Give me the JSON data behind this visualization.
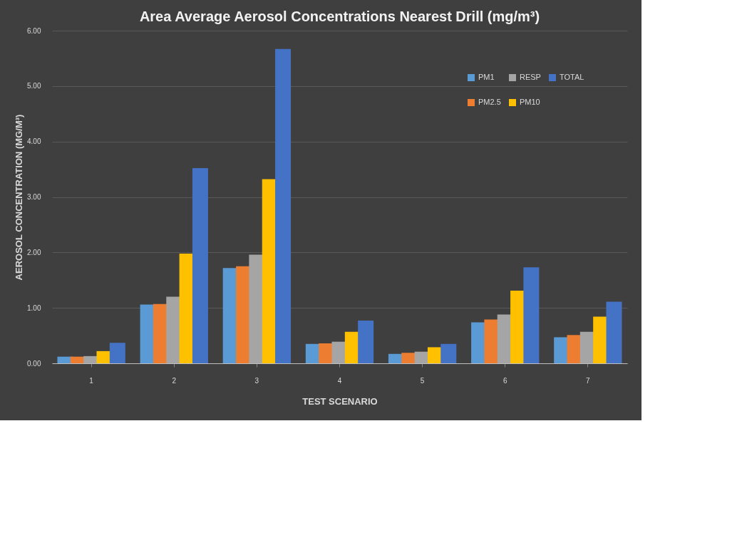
{
  "chart_data": {
    "type": "bar",
    "title": "Area Average Aerosol Concentrations Nearest Drill (mg/m³)",
    "xlabel": "TEST SCENARIO",
    "ylabel": "AEROSOL CONCENTRATION (MG/M³)",
    "categories": [
      "1",
      "2",
      "3",
      "4",
      "5",
      "6",
      "7"
    ],
    "series": [
      {
        "name": "PM1",
        "color": "#5b9bd5",
        "values": [
          0.12,
          1.06,
          1.72,
          0.35,
          0.17,
          0.74,
          0.47
        ]
      },
      {
        "name": "PM2.5",
        "color": "#ed7d31",
        "values": [
          0.12,
          1.07,
          1.75,
          0.36,
          0.19,
          0.79,
          0.51
        ]
      },
      {
        "name": "RESP",
        "color": "#a5a5a5",
        "values": [
          0.13,
          1.2,
          1.96,
          0.39,
          0.21,
          0.88,
          0.57
        ]
      },
      {
        "name": "PM10",
        "color": "#ffc000",
        "values": [
          0.22,
          1.98,
          3.32,
          0.57,
          0.29,
          1.31,
          0.84
        ]
      },
      {
        "name": "TOTAL",
        "color": "#4472c4",
        "values": [
          0.37,
          3.52,
          5.67,
          0.77,
          0.35,
          1.73,
          1.11
        ]
      }
    ],
    "ylim": [
      0,
      6
    ],
    "yticks": [
      {
        "value": 0,
        "label": "0.00"
      },
      {
        "value": 1,
        "label": "1.00"
      },
      {
        "value": 2,
        "label": "2.00"
      },
      {
        "value": 3,
        "label": "3.00"
      },
      {
        "value": 4,
        "label": "4.00"
      },
      {
        "value": 5,
        "label": "5.00"
      },
      {
        "value": 6,
        "label": "6.00"
      }
    ],
    "grid": "y",
    "legend": "top right"
  }
}
